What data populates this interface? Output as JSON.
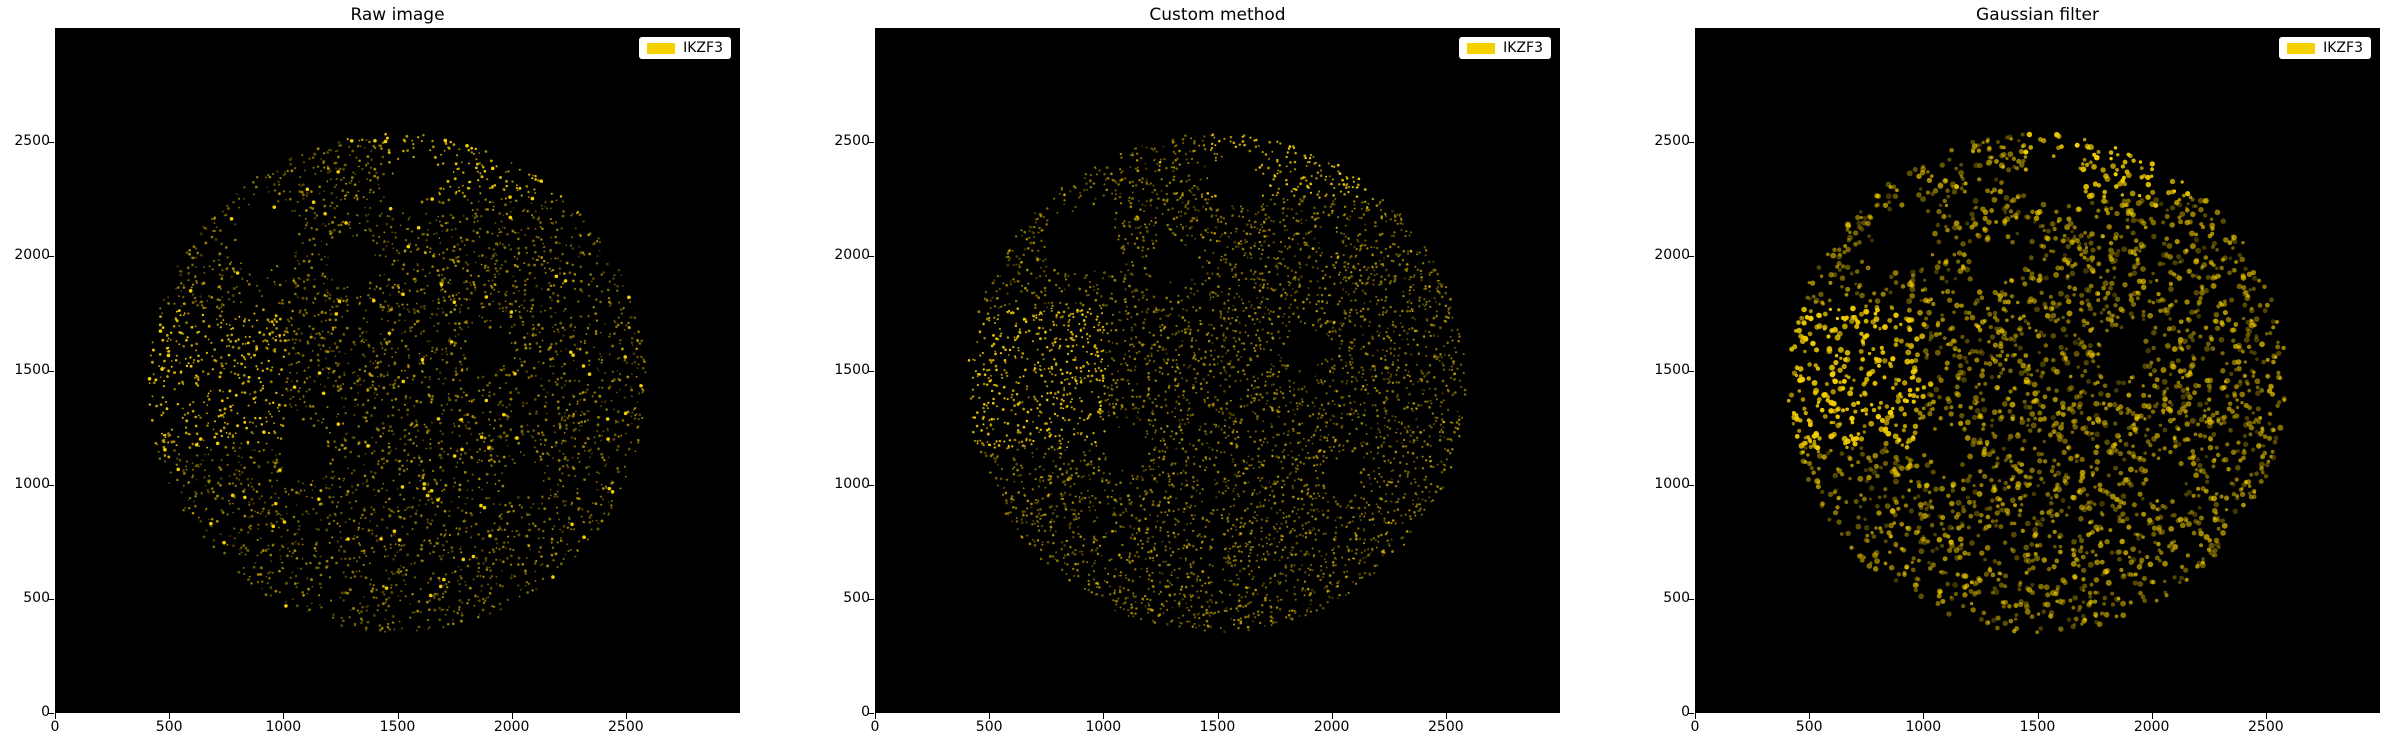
{
  "panels": [
    {
      "title": "Raw image",
      "legend": "IKZF3",
      "style": "raw"
    },
    {
      "title": "Custom method",
      "legend": "IKZF3",
      "style": "custom"
    },
    {
      "title": "Gaussian filter",
      "legend": "IKZF3",
      "style": "gauss"
    }
  ],
  "legend_color": "#f5d000",
  "background_color": "#000000",
  "marker": "IKZF3",
  "axes": {
    "xticks": [
      "0",
      "500",
      "1000",
      "1500",
      "2000",
      "2500"
    ],
    "yticks": [
      "0",
      "500",
      "1000",
      "1500",
      "2000",
      "2500"
    ],
    "xlim": [
      0,
      3000
    ],
    "ylim": [
      0,
      3000
    ]
  }
}
